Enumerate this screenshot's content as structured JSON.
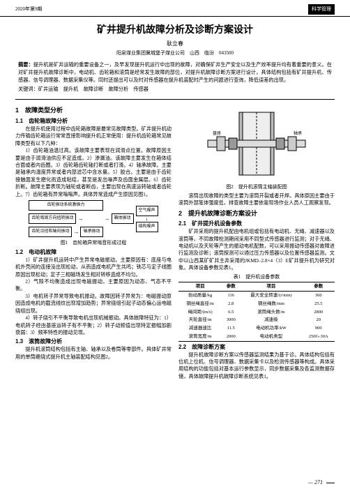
{
  "header": {
    "issue": "2020年第9期",
    "category": "科学管理"
  },
  "title": "矿井提升机故障分析及诊断方案设计",
  "author": "耿立春",
  "affiliation": "阳泉煤业集团冀城堡子煤业公司　山西　临汾　043500",
  "abstract": {
    "label": "摘要：",
    "text": "提升机是矿井运输的重要设备之一，及早发现提升机运行中出现的故障，对确保矿井生产安全以及生产效率提升均有着重要的意义。在对矿井提升机故障诊断中，电动机、齿轮箱和滚筒是经常发生故障的部位，对提升机故障诊断方案进行设计，具体结构包括有矿井提升机、传感器、信号调理器、数据采集仪等。同时还提出可以及时对传感器在提升机装配时产生的问题进行查询，降低误差的出现。"
  },
  "keywords": {
    "label": "关键词：",
    "text": "矿井运输　提升机　故障诊断　故障分析　传感器"
  },
  "left": {
    "sec1": "1　故障类型分析",
    "sub11": "1.1　齿轮箱故障分析",
    "p11a": "在提升机使用过程中齿轮箱故障是最常见故障类型。矿井提升机动力传输齿轮箱运行常常直接影响提升机正常使用：提升机齿轮箱常见故障类型有以下几种：",
    "p11b": "1）齿轮箱油温过高。该故障主要表现在润滑点位置。故障原因主要是由于润滑油供应不足造成。2）渗漏油。该故障主要发生在箱体结合面或者内齿圈。3）齿轮箱齿轮轴打断或者打滑。4）轴承故障。主要是轴承内温度异常或者内部滤芯中含水量。5）胶合。主要是由于齿轮接触面发生磨化而造成粘结，甚至是发出噪声及齿面金属层。6）齿轮折断。故障主要表现为轴轮或者断齿，主要出现在高速运转轴或者齿轮上。7）齿轮箱有异常嗡嗡声。具体异常造成产生原因见图1。",
    "flowchart": {
      "boxes": [
        "齿轮振动系统激振力",
        "齿轮啮周方向扭转振动",
        "齿轮沿径和轴向振动",
        "轴承振动",
        "箱体振动",
        "空气噪声",
        "结构噪声"
      ],
      "caption": "图1　齿轮箱异常嗡音形成过程"
    },
    "sub12": "1.2　电动机故障",
    "p12": "1）矿井提升机运转中产生异常电磁振动。主要原因有：底座与电机外壳间的连接没出现松动，从而造成电机产生共鸣；铁芯与定子线圈原因出现松动；定子三相磁场发生相对转移造成不均匀。",
    "p12b": "2）气隙不均衡造成出现电磁振动。主要原因为动态、气态不平衡。",
    "p12c": "3）电机转子异常导致电机振动。故障因转子异常为：电磁振动原因造成电机的截流线纹出现增加趋势；异常绕组引起子动态偏心运电磁绕组出现。",
    "p12d": "4）转子绕引不平衡导致电机出现机械振动。具体故障特征为：1）电机转子经由基座运转子有不平衡；2）转子动频值出现特定振幅加剧衰弱：3）频率特性的振动见现。",
    "sub13": "1.3　滚筒故障分析",
    "p13": "提升机滚筒结构包括有主轴、轴承以及卷筒等零部件。具体矿井常用的单筒缠绕式提升机主轴装配结构见图2。"
  },
  "right": {
    "fig2_caption": "图2　提升机滚筒主轴装配图",
    "p_r1": "滚筒出现故障的类型主要为滚筒开裂或者开焊。具体原因主要由于滚筒外部笔体强度低，排查故障主要依靠现场作业人员人工观察发现。",
    "sec2": "2　提升机故障诊断方案设计",
    "sub21": "2.1　矿井提升机设备参数",
    "p21": "矿井采用的提升机配由电机组或包括有电动机、无绳、减速器以及滚筒等，不同故障检测期间采用不同型式传感器进行监测；对于无绳、电动机以及天轮等产生的振动电机配数，可以采用振动传感器对故障进行监测及诊断；滚筒探测可以通过压力传感器以及位置传感器监测。文中以山西某矿矿井主井采用的JKMD–2.8×4（3）E矿井提升机为研究对象。具体设备参数见表1。",
    "table1_caption": "表1　提升机设备参数",
    "table1": {
      "col1": "项目",
      "col2": "参数",
      "col3": "项目",
      "col4": "参数",
      "rows": [
        [
          "抬动质量/kg",
          "116",
          "最大安全转速/(r/min)",
          "360"
        ],
        [
          "钢丝绳直径/m",
          "2.8",
          "钢丝绳数/mm",
          "25.5"
        ],
        [
          "绳间距/(m/s)",
          "6.5",
          "滚筒绳头数/m",
          "2800"
        ],
        [
          "天轮直径/m",
          "3000",
          "减速级",
          "20"
        ],
        [
          "减速器速比",
          "11.5",
          "电动机功率/kW",
          "900"
        ],
        [
          "滚筒宽度/m",
          "2000",
          "电动机类型",
          "250G-30A"
        ]
      ]
    },
    "sub22": "2.2　故障诊断方案",
    "p22": "提升机故障诊断方案以传感器监测结果为基于诊。具体结构包括有位机上位机、信号调理器、数据采集卡以及检测传感器等构成。具体采用结构的功能包括对基本运行参数显示，同步数据采集及各监测数据存储，具体故障提升机故障诊断系统见表1。"
  },
  "page": "271"
}
